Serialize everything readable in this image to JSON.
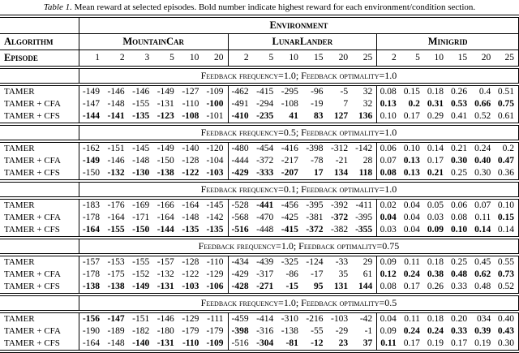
{
  "caption": {
    "label": "Table 1.",
    "text": " Mean reward at selected episodes. Bold number indicate highest reward for each environment/condition section."
  },
  "table": {
    "env_header": "Environment",
    "algorithm_header": "Algorithm",
    "episode_header": "Episode",
    "environments": [
      {
        "name": "MountainCar",
        "episodes": [
          "1",
          "2",
          "3",
          "5",
          "10",
          "20"
        ]
      },
      {
        "name": "LunarLander",
        "episodes": [
          "2",
          "5",
          "10",
          "15",
          "20",
          "25"
        ]
      },
      {
        "name": "Minigrid",
        "episodes": [
          "2",
          "5",
          "10",
          "15",
          "20",
          "25"
        ]
      }
    ],
    "sections": [
      {
        "condition": "Feedback frequency=1.0; Feedback optimality=1.0",
        "rows": [
          {
            "algorithm": "TAMER",
            "values": [
              "-149",
              "-146",
              "-146",
              "-149",
              "-127",
              "-109",
              "-462",
              "-415",
              "-295",
              "-96",
              "-5",
              "32",
              "0.08",
              "0.15",
              "0.18",
              "0.26",
              "0.4",
              "0.51"
            ],
            "bold": [
              0,
              0,
              0,
              0,
              0,
              0,
              0,
              0,
              0,
              0,
              0,
              0,
              0,
              0,
              0,
              0,
              0,
              0
            ]
          },
          {
            "algorithm": "TAMER + CFA",
            "values": [
              "-147",
              "-148",
              "-155",
              "-131",
              "-110",
              "-100",
              "-491",
              "-294",
              "-108",
              "-19",
              "7",
              "32",
              "0.13",
              "0.2",
              "0.31",
              "0.53",
              "0.66",
              "0.75"
            ],
            "bold": [
              0,
              0,
              0,
              0,
              0,
              1,
              0,
              0,
              0,
              0,
              0,
              0,
              1,
              1,
              1,
              1,
              1,
              1
            ]
          },
          {
            "algorithm": "TAMER + CFS",
            "values": [
              "-144",
              "-141",
              "-135",
              "-123",
              "-108",
              "-101",
              "-410",
              "-235",
              "41",
              "83",
              "127",
              "136",
              "0.10",
              "0.17",
              "0.29",
              "0.41",
              "0.52",
              "0.61"
            ],
            "bold": [
              1,
              1,
              1,
              1,
              1,
              0,
              1,
              1,
              1,
              1,
              1,
              1,
              0,
              0,
              0,
              0,
              0,
              0
            ]
          }
        ]
      },
      {
        "condition": "Feedback frequency=0.5; Feedback optimality=1.0",
        "rows": [
          {
            "algorithm": "TAMER",
            "values": [
              "-162",
              "-151",
              "-145",
              "-149",
              "-140",
              "-120",
              "-480",
              "-454",
              "-416",
              "-398",
              "-312",
              "-142",
              "0.06",
              "0.10",
              "0.14",
              "0.21",
              "0.24",
              "0.2"
            ],
            "bold": [
              0,
              0,
              0,
              0,
              0,
              0,
              0,
              0,
              0,
              0,
              0,
              0,
              0,
              0,
              0,
              0,
              0,
              0
            ]
          },
          {
            "algorithm": "TAMER + CFA",
            "values": [
              "-149",
              "-146",
              "-148",
              "-150",
              "-128",
              "-104",
              "-444",
              "-372",
              "-217",
              "-78",
              "-21",
              "28",
              "0.07",
              "0.13",
              "0.17",
              "0.30",
              "0.40",
              "0.47"
            ],
            "bold": [
              1,
              0,
              0,
              0,
              0,
              0,
              0,
              0,
              0,
              0,
              0,
              0,
              0,
              1,
              0,
              1,
              1,
              1
            ]
          },
          {
            "algorithm": "TAMER + CFS",
            "values": [
              "-150",
              "-132",
              "-130",
              "-138",
              "-122",
              "-103",
              "-429",
              "-333",
              "-207",
              "17",
              "134",
              "118",
              "0.08",
              "0.13",
              "0.21",
              "0.25",
              "0.30",
              "0.36"
            ],
            "bold": [
              0,
              1,
              1,
              1,
              1,
              1,
              1,
              1,
              1,
              1,
              1,
              1,
              1,
              1,
              1,
              0,
              0,
              0
            ]
          }
        ]
      },
      {
        "condition": "Feedback frequency=0.1; Feedback optimality=1.0",
        "rows": [
          {
            "algorithm": "TAMER",
            "values": [
              "-183",
              "-176",
              "-169",
              "-166",
              "-164",
              "-145",
              "-528",
              "-441",
              "-456",
              "-395",
              "-392",
              "-411",
              "0.02",
              "0.04",
              "0.05",
              "0.06",
              "0.07",
              "0.10"
            ],
            "bold": [
              0,
              0,
              0,
              0,
              0,
              0,
              0,
              1,
              0,
              0,
              0,
              0,
              0,
              0,
              0,
              0,
              0,
              0
            ]
          },
          {
            "algorithm": "TAMER + CFA",
            "values": [
              "-178",
              "-164",
              "-171",
              "-164",
              "-148",
              "-142",
              "-568",
              "-470",
              "-425",
              "-381",
              "-372",
              "-395",
              "0.04",
              "0.04",
              "0.03",
              "0.08",
              "0.11",
              "0.15"
            ],
            "bold": [
              0,
              0,
              0,
              0,
              0,
              0,
              0,
              0,
              0,
              0,
              1,
              0,
              1,
              0,
              0,
              0,
              0,
              1
            ]
          },
          {
            "algorithm": "TAMER + CFS",
            "values": [
              "-164",
              "-155",
              "-150",
              "-144",
              "-135",
              "-135",
              "-516",
              "-448",
              "-415",
              "-372",
              "-382",
              "-355",
              "0.03",
              "0.04",
              "0.09",
              "0.10",
              "0.14",
              "0.14"
            ],
            "bold": [
              1,
              1,
              1,
              1,
              1,
              1,
              1,
              0,
              1,
              1,
              0,
              1,
              0,
              0,
              1,
              1,
              1,
              0
            ]
          }
        ]
      },
      {
        "condition": "Feedback frequency=1.0; Feedback optimality=0.75",
        "rows": [
          {
            "algorithm": "TAMER",
            "values": [
              "-157",
              "-153",
              "-155",
              "-157",
              "-128",
              "-110",
              "-434",
              "-439",
              "-325",
              "-124",
              "-33",
              "29",
              "0.09",
              "0.11",
              "0.18",
              "0.25",
              "0.45",
              "0.55"
            ],
            "bold": [
              0,
              0,
              0,
              0,
              0,
              0,
              0,
              0,
              0,
              0,
              0,
              0,
              0,
              0,
              0,
              0,
              0,
              0
            ]
          },
          {
            "algorithm": "TAMER + CFA",
            "values": [
              "-178",
              "-175",
              "-152",
              "-132",
              "-122",
              "-129",
              "-429",
              "-317",
              "-86",
              "-17",
              "35",
              "61",
              "0.12",
              "0.24",
              "0.38",
              "0.48",
              "0.62",
              "0.73"
            ],
            "bold": [
              0,
              0,
              0,
              0,
              0,
              0,
              0,
              0,
              0,
              0,
              0,
              0,
              1,
              1,
              1,
              1,
              1,
              1
            ]
          },
          {
            "algorithm": "TAMER + CFS",
            "values": [
              "-138",
              "-138",
              "-149",
              "-131",
              "-103",
              "-106",
              "-428",
              "-271",
              "-15",
              "95",
              "131",
              "144",
              "0.08",
              "0.17",
              "0.26",
              "0.33",
              "0.48",
              "0.52"
            ],
            "bold": [
              1,
              1,
              1,
              1,
              1,
              1,
              1,
              1,
              1,
              1,
              1,
              1,
              0,
              0,
              0,
              0,
              0,
              0
            ]
          }
        ]
      },
      {
        "condition": "Feedback frequency=1.0; Feedback optimality=0.5",
        "rows": [
          {
            "algorithm": "TAMER",
            "values": [
              "-156",
              "-147",
              "-151",
              "-146",
              "-129",
              "-111",
              "-459",
              "-414",
              "-310",
              "-216",
              "-103",
              "-42",
              "0.04",
              "0.11",
              "0.18",
              "0.20",
              "034",
              "0.40"
            ],
            "bold": [
              1,
              1,
              0,
              0,
              0,
              0,
              0,
              0,
              0,
              0,
              0,
              0,
              0,
              0,
              0,
              0,
              0,
              0
            ]
          },
          {
            "algorithm": "TAMER + CFA",
            "values": [
              "-190",
              "-189",
              "-182",
              "-180",
              "-179",
              "-179",
              "-398",
              "-316",
              "-138",
              "-55",
              "-29",
              "-1",
              "0.09",
              "0.24",
              "0.24",
              "0.33",
              "0.39",
              "0.43"
            ],
            "bold": [
              0,
              0,
              0,
              0,
              0,
              0,
              1,
              0,
              0,
              0,
              0,
              0,
              0,
              1,
              1,
              1,
              1,
              1
            ]
          },
          {
            "algorithm": "TAMER + CFS",
            "values": [
              "-164",
              "-148",
              "-140",
              "-131",
              "-110",
              "-109",
              "-516",
              "-304",
              "-81",
              "-12",
              "23",
              "37",
              "0.11",
              "0.17",
              "0.19",
              "0.17",
              "0.19",
              "0.30"
            ],
            "bold": [
              0,
              0,
              1,
              1,
              1,
              1,
              0,
              1,
              1,
              1,
              1,
              1,
              1,
              0,
              0,
              0,
              0,
              0
            ]
          }
        ]
      }
    ]
  }
}
